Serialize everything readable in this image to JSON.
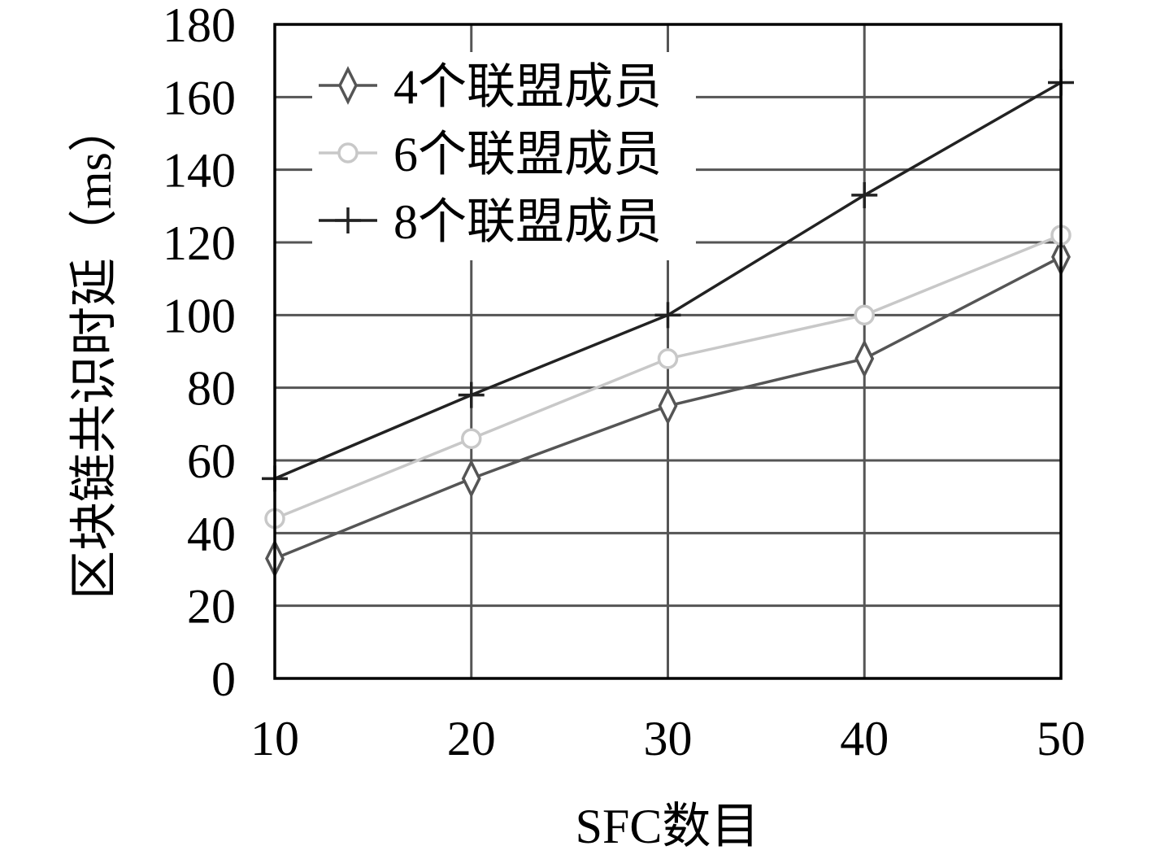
{
  "chart_data": {
    "type": "line",
    "title": "",
    "xlabel": "SFC数目",
    "ylabel": "区块链共识时延（ms）",
    "x": [
      10,
      20,
      30,
      40,
      50
    ],
    "xlim": [
      10,
      50
    ],
    "ylim": [
      0,
      180
    ],
    "xticks": [
      "10",
      "20",
      "30",
      "40",
      "50"
    ],
    "yticks": [
      "0",
      "20",
      "40",
      "60",
      "80",
      "100",
      "120",
      "140",
      "160",
      "180"
    ],
    "grid": true,
    "legend_position": "top-left",
    "series": [
      {
        "name": "4个联盟成员",
        "values": [
          33,
          55,
          75,
          88,
          116
        ],
        "color": "#555555",
        "marker": "diamond"
      },
      {
        "name": "6个联盟成员",
        "values": [
          44,
          66,
          88,
          100,
          122
        ],
        "color": "#c8c8c8",
        "marker": "circle"
      },
      {
        "name": "8个联盟成员",
        "values": [
          55,
          78,
          100,
          133,
          164
        ],
        "color": "#222222",
        "marker": "plus"
      }
    ]
  }
}
